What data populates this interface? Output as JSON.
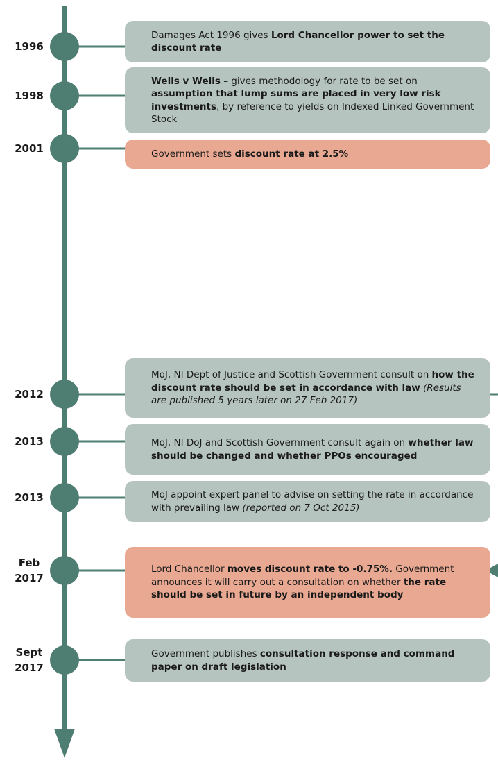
{
  "events": [
    {
      "date": "1996",
      "tone": "neutral",
      "runs": [
        {
          "text": "Damages Act 1996 gives ",
          "style": "normal"
        },
        {
          "text": "Lord Chancellor power to set the discount rate",
          "style": "bold"
        }
      ]
    },
    {
      "date": "1998",
      "tone": "neutral",
      "runs": [
        {
          "text": "Wells v Wells",
          "style": "bold"
        },
        {
          "text": " – gives methodology for rate to be set on ",
          "style": "normal"
        },
        {
          "text": "assumption that lump sums are placed in very low risk investments",
          "style": "bold"
        },
        {
          "text": ", by reference to yields on Indexed Linked Government Stock",
          "style": "normal"
        }
      ]
    },
    {
      "date": "2001",
      "tone": "highlight",
      "runs": [
        {
          "text": "Government sets ",
          "style": "normal"
        },
        {
          "text": "discount rate at 2.5%",
          "style": "bold"
        }
      ]
    },
    {
      "date": "2012",
      "tone": "neutral",
      "runs": [
        {
          "text": "MoJ, NI Dept of Justice and Scottish Government consult on ",
          "style": "normal"
        },
        {
          "text": "how the discount rate should be set in accordance with law",
          "style": "bold"
        },
        {
          "text": " (Results are published 5 years later on 27 Feb 2017)",
          "style": "italic"
        }
      ]
    },
    {
      "date": "2013",
      "tone": "neutral",
      "runs": [
        {
          "text": "MoJ, NI DoJ and Scottish Government consult again on ",
          "style": "normal"
        },
        {
          "text": "whether law should be changed and whether PPOs encouraged",
          "style": "bold"
        }
      ]
    },
    {
      "date": "2013",
      "tone": "neutral",
      "runs": [
        {
          "text": "MoJ appoint expert panel to advise on setting the rate in accordance with prevailing law ",
          "style": "normal"
        },
        {
          "text": "(reported on 7 Oct 2015)",
          "style": "italic"
        }
      ]
    },
    {
      "date": "Feb 2017",
      "tone": "highlight",
      "runs": [
        {
          "text": "Lord Chancellor ",
          "style": "normal"
        },
        {
          "text": "moves discount rate to -0.75%.",
          "style": "bold"
        },
        {
          "text": " Government announces it will carry out a consultation on whether ",
          "style": "normal"
        },
        {
          "text": "the rate should be set in future by an independent body",
          "style": "bold"
        }
      ]
    },
    {
      "date": "Sept 2017",
      "tone": "neutral",
      "runs": [
        {
          "text": "Government publishes ",
          "style": "normal"
        },
        {
          "text": "consultation response and command paper on draft legislation",
          "style": "bold"
        }
      ]
    }
  ]
}
